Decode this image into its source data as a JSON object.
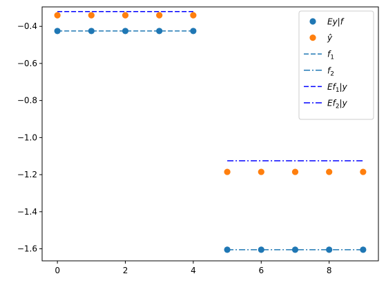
{
  "chart_data": {
    "type": "scatter",
    "title": "",
    "xlabel": "",
    "ylabel": "",
    "xlim": [
      -0.45,
      9.45
    ],
    "ylim": [
      -1.665,
      -0.295
    ],
    "xticks": [
      0,
      2,
      4,
      6,
      8
    ],
    "xtick_labels": [
      "0",
      "2",
      "4",
      "6",
      "8"
    ],
    "yticks": [
      -0.4,
      -0.6,
      -0.8,
      -1.0,
      -1.2,
      -1.4,
      -1.6
    ],
    "ytick_labels": [
      "−0.4",
      "−0.6",
      "−0.8",
      "−1.0",
      "−1.2",
      "−1.4",
      "−1.6"
    ],
    "grid": false,
    "legend_position": "top-right",
    "series": [
      {
        "name": "Ey|f",
        "kind": "scatter",
        "color": "#1f77b4",
        "x": [
          0,
          1,
          2,
          3,
          4,
          5,
          6,
          7,
          8,
          9
        ],
        "y": [
          -0.425,
          -0.425,
          -0.425,
          -0.425,
          -0.425,
          -1.605,
          -1.605,
          -1.605,
          -1.605,
          -1.605
        ]
      },
      {
        "name": "ŷ",
        "kind": "scatter",
        "color": "#ff7f0e",
        "x": [
          0,
          1,
          2,
          3,
          4,
          5,
          6,
          7,
          8,
          9
        ],
        "y": [
          -0.34,
          -0.34,
          -0.34,
          -0.34,
          -0.34,
          -1.185,
          -1.185,
          -1.185,
          -1.185,
          -1.185
        ]
      },
      {
        "name": "f",
        "subscript": "1",
        "kind": "line",
        "dash": "dashed",
        "color": "#1f77b4",
        "x": [
          0,
          4
        ],
        "y": [
          -0.425,
          -0.425
        ]
      },
      {
        "name": "f",
        "subscript": "2",
        "kind": "line",
        "dash": "dashdot",
        "color": "#1f77b4",
        "x": [
          5,
          9
        ],
        "y": [
          -1.605,
          -1.605
        ]
      },
      {
        "name": "Ef",
        "subscript": "1",
        "suffix": "|y",
        "kind": "line",
        "dash": "dashed",
        "color": "#0000ff",
        "x": [
          0,
          4
        ],
        "y": [
          -0.32,
          -0.32
        ]
      },
      {
        "name": "Ef",
        "subscript": "2",
        "suffix": "|y",
        "kind": "line",
        "dash": "dashdot",
        "color": "#0000ff",
        "x": [
          5,
          9
        ],
        "y": [
          -1.125,
          -1.125
        ]
      }
    ]
  }
}
